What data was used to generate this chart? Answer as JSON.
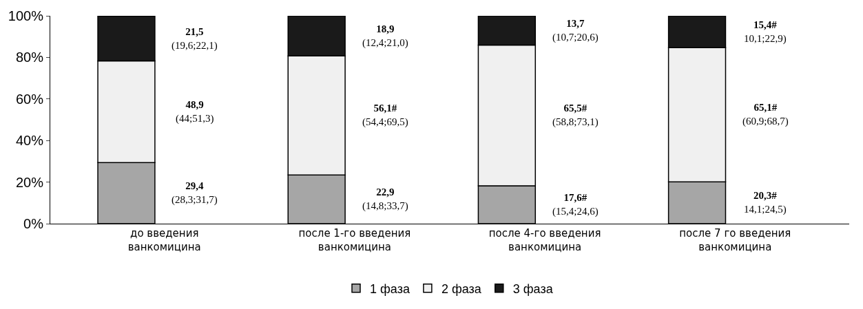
{
  "chart_data": {
    "type": "bar",
    "stacked": true,
    "categories": [
      "до введения ванкомицина",
      "после 1-го введения ванкомицина",
      "после 4-го введения ванкомицина",
      "после 7 го введения ванкомицина"
    ],
    "series": [
      {
        "name": "1 фаза",
        "color": "#a6a6a6",
        "values": [
          29.4,
          23.4,
          18.2,
          20.1
        ]
      },
      {
        "name": "2 фаза",
        "color": "#f0f0f0",
        "values": [
          48.9,
          57.3,
          67.7,
          64.6
        ]
      },
      {
        "name": "3 фаза",
        "color": "#1a1a1a",
        "values": [
          21.5,
          19.3,
          14.1,
          15.3
        ]
      }
    ],
    "annotations": [
      "29,4\n(28,3;31,7)",
      "48,9\n(44;51,3)",
      "21,5\n(19,6;22,1)",
      "22,9\n(14,8;33,7)",
      "56,1#\n(54,4;69,5)",
      "18,9\n(12,4;21,0)",
      "17,6#\n(15,4;24,6)",
      "65,5#\n(58,8;73,1)",
      "13,7\n(10,7;20,6)",
      "20,3#\n14,1;24,5)",
      "65,1#\n(60,9;68,7)",
      "15,4#\n10,1;22,9)"
    ],
    "ylim": [
      0,
      100
    ],
    "yticks": [
      {
        "value": 0,
        "label": "0%"
      },
      {
        "value": 20,
        "label": "20%"
      },
      {
        "value": 40,
        "label": "40%"
      },
      {
        "value": 60,
        "label": "60%"
      },
      {
        "value": 80,
        "label": "80%"
      },
      {
        "value": 100,
        "label": "100%"
      }
    ],
    "legend": "bottom"
  }
}
